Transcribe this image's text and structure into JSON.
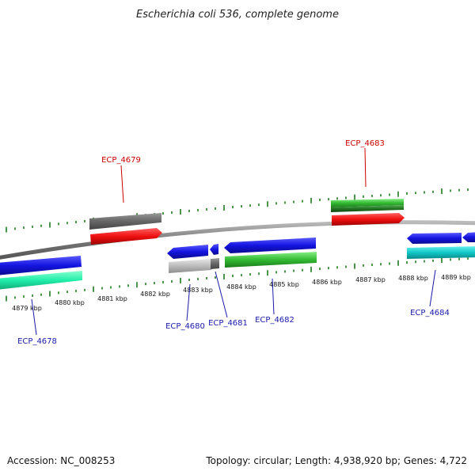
{
  "title": "Escherichia coli 536, complete genome",
  "footer": {
    "accession": "Accession: NC_008253",
    "summary": "Topology: circular; Length: 4,938,920 bp; Genes: 4,722"
  },
  "colors": {
    "backbone": "#8a8a8a",
    "tick": "#1e7a1e",
    "label_top_strand": "#cc0000",
    "label_bottom_strand": "#1a1aaa",
    "blue": "#1414e0",
    "red": "#ee1010",
    "green": "#33bb33",
    "darkgreen": "#227722",
    "gray": "#666666",
    "lightgray": "#bbbbbb",
    "cyan": "#11c8c8",
    "aqua": "#22eeaa"
  },
  "kbp_labels": [
    "4879 kbp",
    "4880 kbp",
    "4881 kbp",
    "4882 kbp",
    "4883 kbp",
    "4884 kbp",
    "4885 kbp",
    "4886 kbp",
    "4887 kbp",
    "4888 kbp",
    "4889 kbp"
  ],
  "gene_labels": [
    {
      "text": "ECP_4679",
      "strand": "top"
    },
    {
      "text": "ECP_4683",
      "strand": "top"
    },
    {
      "text": "ECP_4678",
      "strand": "bottom"
    },
    {
      "text": "ECP_4680",
      "strand": "bottom"
    },
    {
      "text": "ECP_4681",
      "strand": "bottom"
    },
    {
      "text": "ECP_4682",
      "strand": "bottom"
    },
    {
      "text": "ECP_4684",
      "strand": "bottom"
    }
  ]
}
